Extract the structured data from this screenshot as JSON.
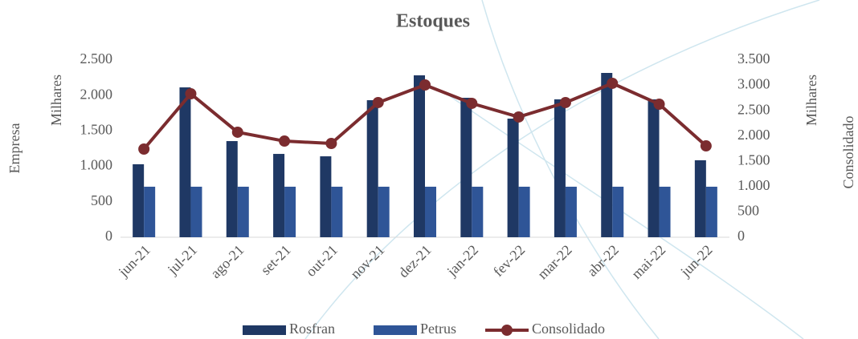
{
  "chart_data": {
    "type": "bar-line",
    "title": "Estoques",
    "y_label": "Empresa",
    "y_units": "Milhares",
    "y2_label": "Consolidado",
    "y2_units": "Milhares",
    "categories": [
      "jun-21",
      "jul-21",
      "ago-21",
      "set-21",
      "out-21",
      "nov-21",
      "dez-21",
      "jan-22",
      "fev-22",
      "mar-22",
      "abr-22",
      "mai-22",
      "jun-22"
    ],
    "series": [
      {
        "name": "Rosfran",
        "type": "bar",
        "color": "#1f3864",
        "values": [
          1030,
          2115,
          1357,
          1176,
          1142,
          1934,
          2285,
          1968,
          1674,
          1946,
          2319,
          1946,
          1086
        ]
      },
      {
        "name": "Petrus",
        "type": "bar",
        "color": "#2f5597",
        "values": [
          713,
          713,
          713,
          713,
          713,
          713,
          713,
          713,
          713,
          713,
          713,
          713,
          713
        ]
      },
      {
        "name": "Consolidado",
        "type": "line",
        "axis": "y2",
        "color": "#7b2c2f",
        "values": [
          1742,
          2835,
          2075,
          1900,
          1853,
          2661,
          3009,
          2645,
          2376,
          2661,
          3041,
          2629,
          1805
        ]
      }
    ],
    "ylim": [
      0,
      2500
    ],
    "yticks": [
      0,
      500,
      {
        "value": 1000,
        "label": "1.000"
      },
      {
        "value": 1500,
        "label": "1.500"
      },
      {
        "value": 2000,
        "label": "2.000"
      },
      {
        "value": 2500,
        "label": "2.500"
      }
    ],
    "y2lim": [
      0,
      3500
    ],
    "y2ticks": [
      0,
      500,
      {
        "value": 1000,
        "label": "1.000"
      },
      {
        "value": 1500,
        "label": "1.500"
      },
      {
        "value": 2000,
        "label": "2.000"
      },
      {
        "value": 2500,
        "label": "2.500"
      },
      {
        "value": 3000,
        "label": "3.000"
      },
      {
        "value": 3500,
        "label": "3.500"
      }
    ],
    "grid": false,
    "legend": "bottom"
  }
}
